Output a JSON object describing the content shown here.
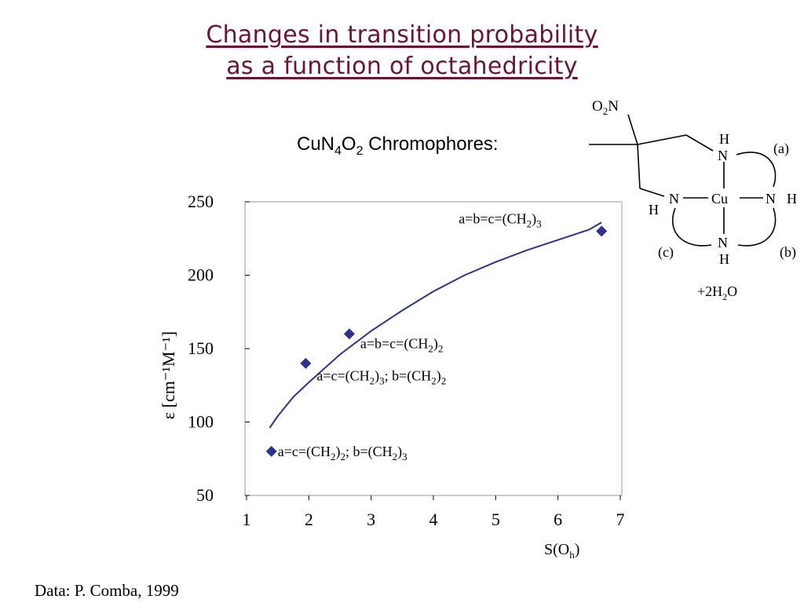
{
  "slide": {
    "title_line1": "Changes in transition probability",
    "title_line2": "as a function of octahedricity",
    "chromophore_label": {
      "prefix": "CuN",
      "sub1": "4",
      "mid": "O",
      "sub2": "2",
      "suffix": " Chromophores:"
    },
    "credit": "Data: P. Comba, 1999",
    "colors": {
      "title": "#6b1436",
      "data_marker": "#2e3192",
      "fit_curve": "#2e3192"
    }
  },
  "structure": {
    "atoms": {
      "o2n": {
        "a": "O",
        "sub": "2",
        "b": "N"
      },
      "nh_top_h": "H",
      "nh_top_n": "N",
      "cu": "Cu",
      "n_left": "N",
      "h_left": "H",
      "n_right": "N",
      "h_right": "H",
      "n_bottom": "N",
      "h_bottom": "H"
    },
    "ring_labels": {
      "a": "(a)",
      "b": "(b)",
      "c": "(c)"
    },
    "water": {
      "a": "+2H",
      "sub": "2",
      "b": "O"
    }
  },
  "chart_data": {
    "type": "scatter",
    "xlabel": {
      "text": "S(O",
      "sub": "h",
      "suffix": ")"
    },
    "ylabel": "ε [cm⁻¹M⁻¹]",
    "xlim": [
      1,
      7
    ],
    "ylim": [
      50,
      250
    ],
    "xticks": [
      1,
      2,
      3,
      4,
      5,
      6,
      7
    ],
    "yticks": [
      50,
      100,
      150,
      200,
      250
    ],
    "grid": false,
    "series": [
      {
        "kind": "markers",
        "marker": "diamond",
        "points": [
          {
            "x": 1.4,
            "y": 80,
            "label": [
              [
                "a=c=(CH",
                ""
              ],
              [
                "2",
                "sub"
              ],
              [
                ")",
                ""
              ],
              [
                "2",
                "sub"
              ],
              [
                "; b=(CH",
                ""
              ],
              [
                "2",
                "sub"
              ],
              [
                ")",
                ""
              ],
              [
                "3",
                "sub"
              ]
            ]
          },
          {
            "x": 1.95,
            "y": 140,
            "label": [
              [
                "a=c=(CH",
                ""
              ],
              [
                "2",
                "sub"
              ],
              [
                ")",
                ""
              ],
              [
                "3",
                "sub"
              ],
              [
                "; b=(CH",
                ""
              ],
              [
                "2",
                "sub"
              ],
              [
                ")",
                ""
              ],
              [
                "2",
                "sub"
              ]
            ]
          },
          {
            "x": 2.65,
            "y": 160,
            "label": [
              [
                "a=b=c=(CH",
                ""
              ],
              [
                "2",
                "sub"
              ],
              [
                ")",
                ""
              ],
              [
                "2",
                "sub"
              ]
            ]
          },
          {
            "x": 6.7,
            "y": 230,
            "label": [
              [
                "a=b=c=(CH",
                ""
              ],
              [
                "2",
                "sub"
              ],
              [
                ")",
                ""
              ],
              [
                "3",
                "sub"
              ]
            ]
          }
        ]
      },
      {
        "kind": "fit_line",
        "points": [
          [
            1.37,
            96
          ],
          [
            1.5,
            104
          ],
          [
            1.75,
            117
          ],
          [
            2.0,
            127
          ],
          [
            2.5,
            146
          ],
          [
            3.0,
            162
          ],
          [
            3.5,
            176
          ],
          [
            4.0,
            189
          ],
          [
            4.5,
            200
          ],
          [
            5.0,
            209
          ],
          [
            5.5,
            217
          ],
          [
            6.0,
            224
          ],
          [
            6.5,
            231
          ],
          [
            6.7,
            236
          ]
        ]
      }
    ]
  }
}
